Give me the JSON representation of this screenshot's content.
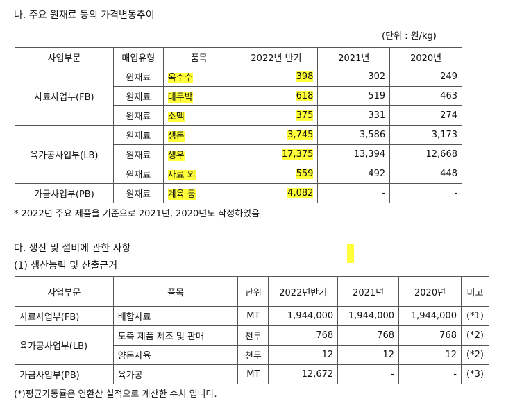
{
  "section_na": {
    "title": "나. 주요 원재료 등의 가격변동추이",
    "unit_note": "(단위 : 원/kg)",
    "headers": [
      "사업부문",
      "매입유형",
      "품목",
      "2022년 반기",
      "2021년",
      "2020년"
    ],
    "groups": [
      {
        "division": "사료사업부(FB)",
        "rows": [
          {
            "type": "원재료",
            "item": "옥수수",
            "y2022h": "398",
            "y2021": "302",
            "y2020": "249"
          },
          {
            "type": "원재료",
            "item": "대두박",
            "y2022h": "618",
            "y2021": "519",
            "y2020": "463"
          },
          {
            "type": "원재료",
            "item": "소맥",
            "y2022h": "375",
            "y2021": "331",
            "y2020": "274"
          }
        ]
      },
      {
        "division": "육가공사업부(LB)",
        "rows": [
          {
            "type": "원재료",
            "item": "생돈",
            "y2022h": "3,745",
            "y2021": "3,586",
            "y2020": "3,173"
          },
          {
            "type": "원재료",
            "item": "생우",
            "y2022h": "17,375",
            "y2021": "13,394",
            "y2020": "12,668"
          },
          {
            "type": "원재료",
            "item": "사료 외",
            "y2022h": "559",
            "y2021": "492",
            "y2020": "448"
          }
        ]
      },
      {
        "division": "가금사업부(PB)",
        "rows": [
          {
            "type": "원재료",
            "item": "계육 등",
            "y2022h": "4,082",
            "y2021": "-",
            "y2020": "-"
          }
        ]
      }
    ],
    "footnote": "* 2022년 주요 제품을 기준으로 2021년, 2020년도 작성하였음"
  },
  "section_da": {
    "title": "다. 생산 및 설비에 관한 사항",
    "subtitle": "(1) 생산능력 및 산출근거",
    "headers": [
      "사업부문",
      "품목",
      "단위",
      "2022년반기",
      "2021년",
      "2020년",
      "비고"
    ],
    "groups": [
      {
        "division": "사료사업부(FB)",
        "rows": [
          {
            "item": "배합사료",
            "unit": "MT",
            "y2022h": "1,944,000",
            "y2021": "1,944,000",
            "y2020": "1,944,000",
            "note": "(*1)"
          }
        ]
      },
      {
        "division": "육가공사업부(LB)",
        "rows": [
          {
            "item": "도축 제품 제조 및 판매",
            "unit": "천두",
            "y2022h": "768",
            "y2021": "768",
            "y2020": "768",
            "note": "(*2)"
          },
          {
            "item": "양돈사육",
            "unit": "천두",
            "y2022h": "12",
            "y2021": "12",
            "y2020": "12",
            "note": "(*2)"
          }
        ]
      },
      {
        "division": "가금사업부(PB)",
        "rows": [
          {
            "item": "육가공",
            "unit": "MT",
            "y2022h": "12,672",
            "y2021": "-",
            "y2020": "-",
            "note": "(*3)"
          }
        ]
      }
    ],
    "footnote": "(*)평균가동률은 연환산 실적으로 계산한 수치 입니다."
  },
  "highlight_color": "#ffff3a"
}
